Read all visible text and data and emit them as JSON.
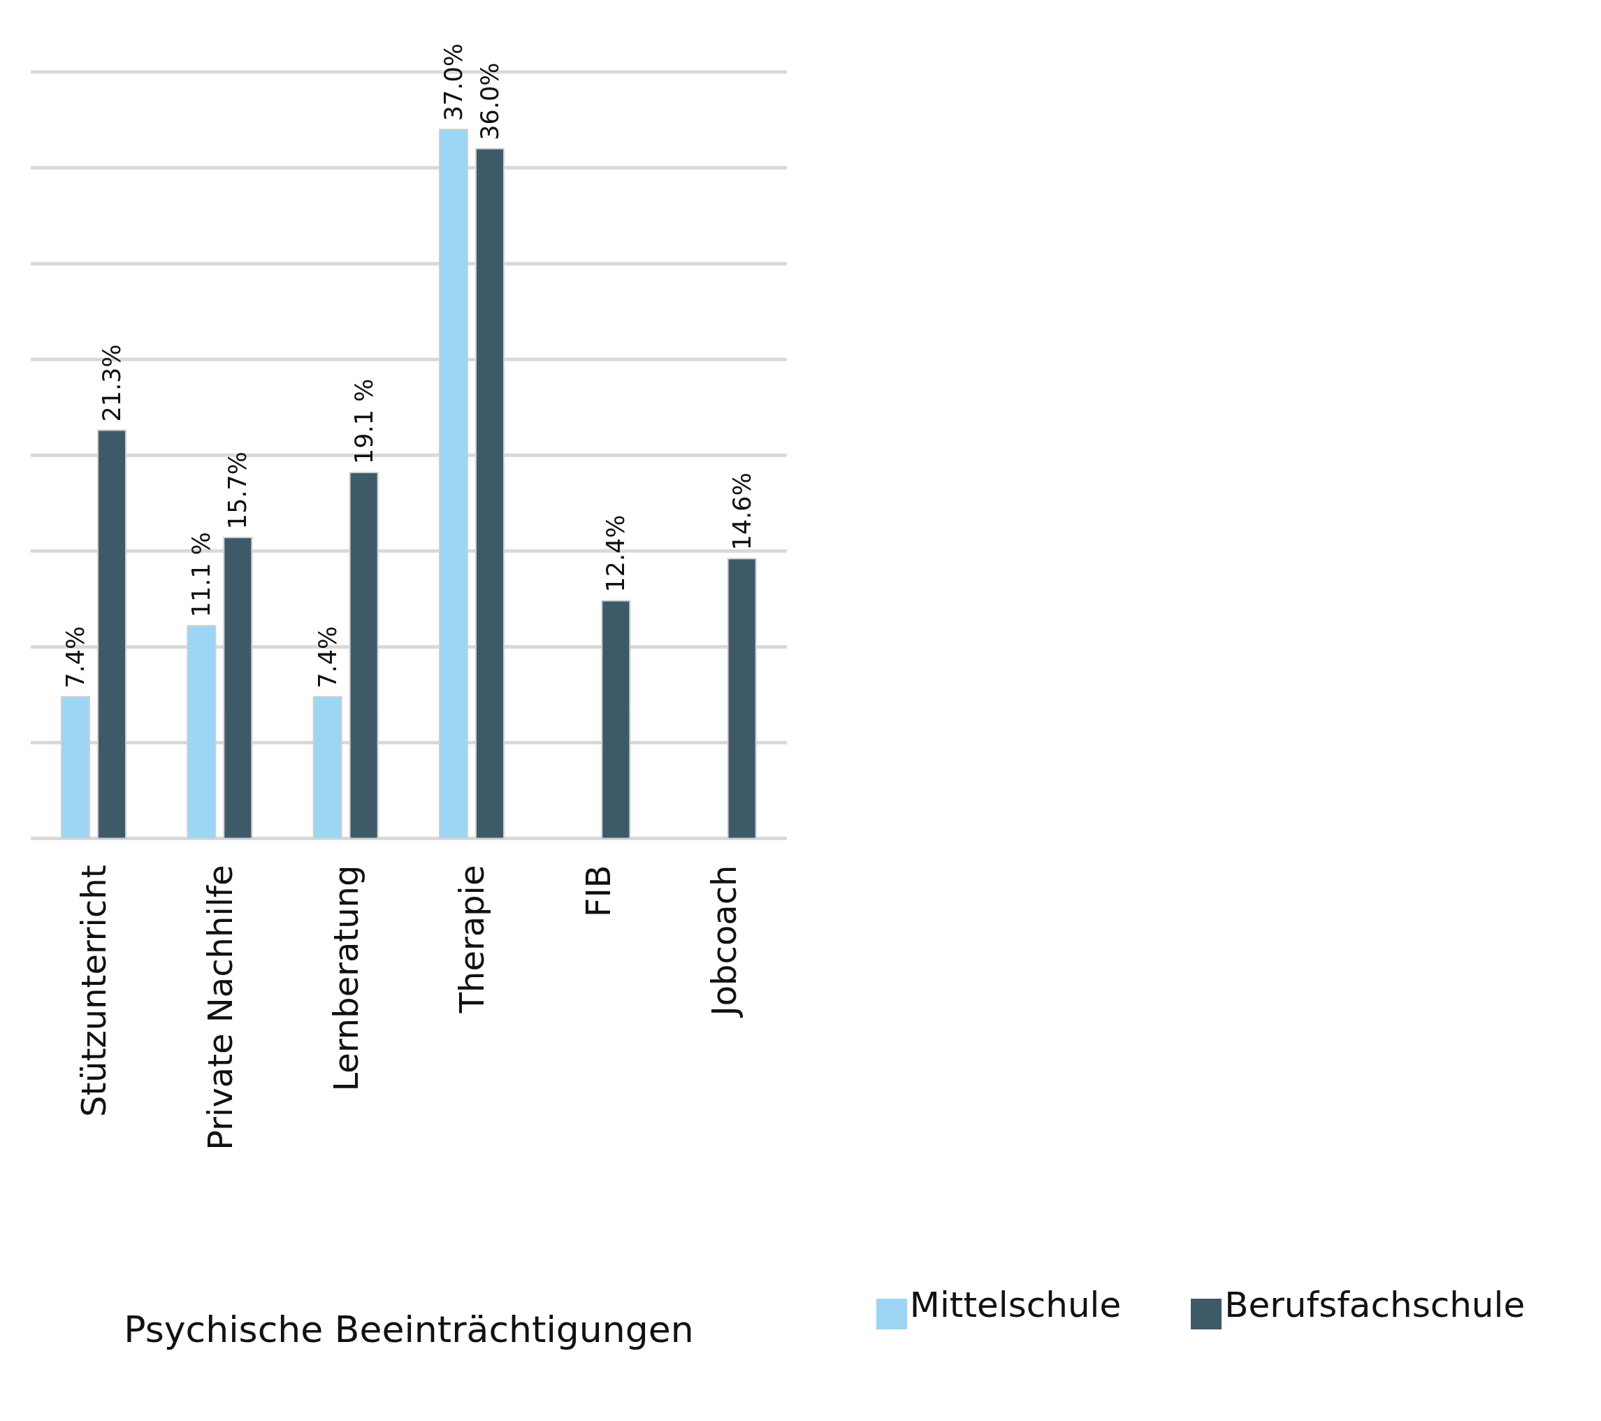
{
  "chart_data": {
    "type": "bar",
    "xlabel": "Psychische Beeinträchtigungen",
    "categories": [
      "Stützunterricht",
      "Private Nachhilfe",
      "Lernberatung",
      "Therapie",
      "FIB",
      "Jobcoach"
    ],
    "series": [
      {
        "name": "Mittelschule",
        "color": "#9dd5f4",
        "values": [
          7.4,
          11.1,
          7.4,
          37.0,
          null,
          null
        ],
        "value_labels": [
          "7.4%",
          "11.1 %",
          "7.4%",
          "37.0%",
          null,
          null
        ]
      },
      {
        "name": "Berufsfachschule",
        "color": "#3e5a69",
        "values": [
          21.3,
          15.7,
          19.1,
          36.0,
          12.4,
          14.6
        ],
        "value_labels": [
          "21.3%",
          "15.7%",
          "19.1 %",
          "36.0%",
          "12.4%",
          "14.6%"
        ]
      }
    ],
    "ylim": [
      0,
      40
    ],
    "yticks": [
      {
        "value": 0,
        "label": null
      },
      {
        "value": 5,
        "label": null
      },
      {
        "value": 10,
        "label": null
      },
      {
        "value": 15,
        "label": null
      },
      {
        "value": 20,
        "label": null
      },
      {
        "value": 25,
        "label": null
      },
      {
        "value": 30,
        "label": null
      },
      {
        "value": 35,
        "label": null
      },
      {
        "value": 40,
        "label": null
      }
    ],
    "tick_labels": "x",
    "grid": "y",
    "legend": "bottom right"
  }
}
